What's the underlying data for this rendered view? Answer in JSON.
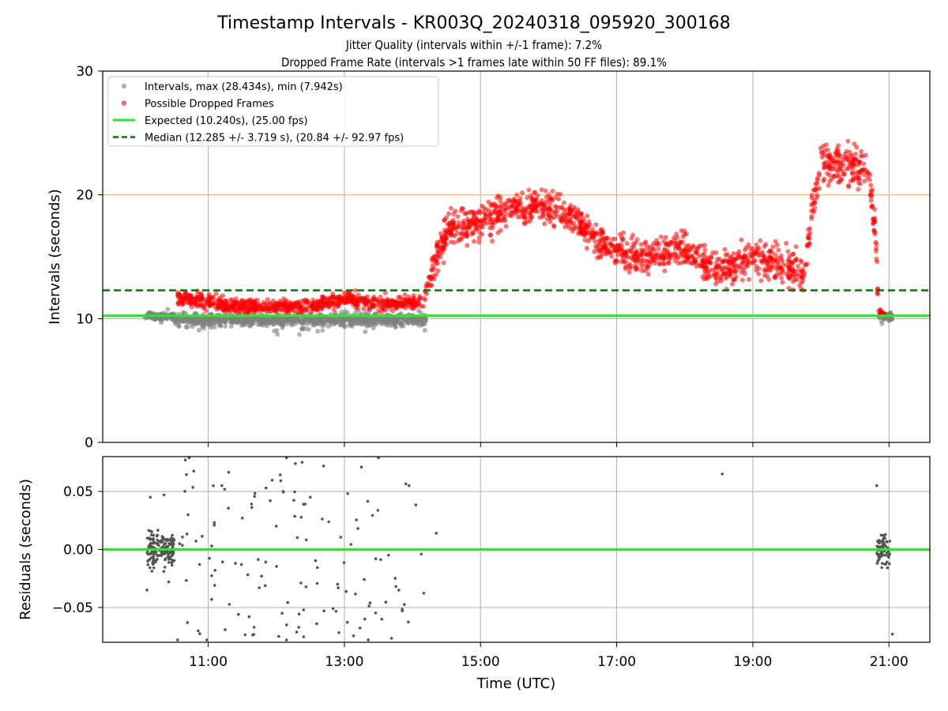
{
  "figure": {
    "title": "Timestamp Intervals - KR003Q_20240318_095920_300168",
    "subtitle_1": "Jitter Quality (intervals within +/-1 frame): 7.2%",
    "subtitle_2": "Dropped Frame Rate (intervals >1 frames late within 50 FF files): 89.1%"
  },
  "colors": {
    "intervals": "#808080",
    "dropped": "#ff0000",
    "expected": "#22ee22",
    "median": "#007700",
    "threshold": "#ffc04d",
    "grid": "#b0b0b0",
    "residuals": "#555555"
  },
  "chart_data": [
    {
      "type": "scatter",
      "panel": "top",
      "xlabel": "",
      "ylabel": "Intervals (seconds)",
      "xlim_hours": [
        9.45,
        21.6
      ],
      "ylim": [
        0,
        30
      ],
      "x_ticks": [
        {
          "value": 11,
          "label": "11:00"
        },
        {
          "value": 13,
          "label": "13:00"
        },
        {
          "value": 15,
          "label": "15:00"
        },
        {
          "value": 17,
          "label": "17:00"
        },
        {
          "value": 19,
          "label": "19:00"
        },
        {
          "value": 21,
          "label": "21:00"
        }
      ],
      "y_ticks": [
        {
          "value": 0,
          "label": "0"
        },
        {
          "value": 10,
          "label": "10"
        },
        {
          "value": 20,
          "label": "20"
        },
        {
          "value": 30,
          "label": "30"
        }
      ],
      "grid": true,
      "legend_position": "upper-left",
      "legend": [
        {
          "label": "Intervals, max (28.434s), min (7.942s)",
          "kind": "marker",
          "color": "#808080"
        },
        {
          "label": "Possible Dropped Frames",
          "kind": "marker",
          "color": "#ff0000"
        },
        {
          "label": "Expected (10.240s), (25.00 fps)",
          "kind": "line",
          "color": "#22ee22"
        },
        {
          "label": "Median (12.285 +/- 3.719 s), (20.84 +/- 92.97 fps)",
          "kind": "dashed",
          "color": "#007700"
        }
      ],
      "lines": [
        {
          "name": "expected",
          "y": 10.24
        },
        {
          "name": "median",
          "y": 12.285
        },
        {
          "name": "threshold",
          "y": 20
        }
      ],
      "dropped_trend": [
        [
          10.55,
          11.7
        ],
        [
          11.5,
          11.0
        ],
        [
          12.5,
          11.0
        ],
        [
          13.0,
          11.6
        ],
        [
          13.5,
          11.2
        ],
        [
          14.15,
          11.3
        ],
        [
          14.35,
          15.0
        ],
        [
          14.55,
          17.3
        ],
        [
          15.0,
          17.8
        ],
        [
          15.5,
          19.0
        ],
        [
          16.0,
          19.0
        ],
        [
          16.5,
          17.5
        ],
        [
          16.8,
          15.9
        ],
        [
          17.3,
          15.0
        ],
        [
          17.8,
          15.3
        ],
        [
          18.0,
          15.6
        ],
        [
          18.5,
          13.8
        ],
        [
          19.0,
          15.0
        ],
        [
          19.5,
          14.2
        ],
        [
          19.75,
          13.5
        ],
        [
          19.85,
          18.0
        ],
        [
          20.0,
          22.5
        ],
        [
          20.4,
          22.5
        ],
        [
          20.7,
          22.0
        ],
        [
          20.8,
          17.0
        ],
        [
          20.85,
          10.6
        ],
        [
          20.95,
          10.3
        ]
      ],
      "gray_segments": [
        [
          10.05,
          10.5,
          10.2,
          0.25
        ],
        [
          10.5,
          14.2,
          9.9,
          0.45
        ],
        [
          20.85,
          21.05,
          10.2,
          0.3
        ]
      ]
    },
    {
      "type": "scatter",
      "panel": "bottom",
      "xlabel": "Time (UTC)",
      "ylabel": "Residuals (seconds)",
      "xlim_hours": [
        9.45,
        21.6
      ],
      "ylim": [
        -0.08,
        0.08
      ],
      "x_ticks": [
        {
          "value": 11,
          "label": "11:00"
        },
        {
          "value": 13,
          "label": "13:00"
        },
        {
          "value": 15,
          "label": "15:00"
        },
        {
          "value": 17,
          "label": "17:00"
        },
        {
          "value": 19,
          "label": "19:00"
        },
        {
          "value": 21,
          "label": "21:00"
        }
      ],
      "y_ticks": [
        {
          "value": 0.05,
          "label": "0.05"
        },
        {
          "value": 0.0,
          "label": "0.00"
        },
        {
          "value": -0.05,
          "label": "−0.05"
        }
      ],
      "grid": true,
      "zero_line": 0,
      "sample_points": [
        [
          10.72,
          0.079
        ],
        [
          12.15,
          0.079
        ],
        [
          12.28,
          0.074
        ],
        [
          13.5,
          0.079
        ],
        [
          13.25,
          0.071
        ],
        [
          18.55,
          0.065
        ],
        [
          20.82,
          0.055
        ],
        [
          11.2,
          0.055
        ],
        [
          11.85,
          0.053
        ],
        [
          12.1,
          0.05
        ],
        [
          13.95,
          0.055
        ],
        [
          14.35,
          0.014
        ],
        [
          10.58,
          0.005
        ],
        [
          11.05,
          0.003
        ],
        [
          11.5,
          0.027
        ],
        [
          12.0,
          0.02
        ],
        [
          12.5,
          0.045
        ],
        [
          13.2,
          0.018
        ],
        [
          13.65,
          -0.005
        ],
        [
          11.1,
          -0.018
        ],
        [
          11.4,
          -0.012
        ],
        [
          11.75,
          -0.033
        ],
        [
          12.9,
          -0.03
        ],
        [
          13.8,
          -0.035
        ],
        [
          11.05,
          -0.043
        ],
        [
          11.6,
          -0.058
        ],
        [
          12.15,
          -0.065
        ],
        [
          12.7,
          -0.053
        ],
        [
          13.3,
          -0.06
        ],
        [
          13.85,
          -0.053
        ],
        [
          10.55,
          -0.078
        ],
        [
          10.98,
          -0.078
        ],
        [
          12.15,
          -0.078
        ],
        [
          13.35,
          -0.078
        ],
        [
          21.05,
          -0.073
        ],
        [
          10.15,
          0.045
        ],
        [
          10.35,
          0.047
        ],
        [
          10.42,
          -0.028
        ],
        [
          10.1,
          -0.035
        ]
      ]
    }
  ]
}
